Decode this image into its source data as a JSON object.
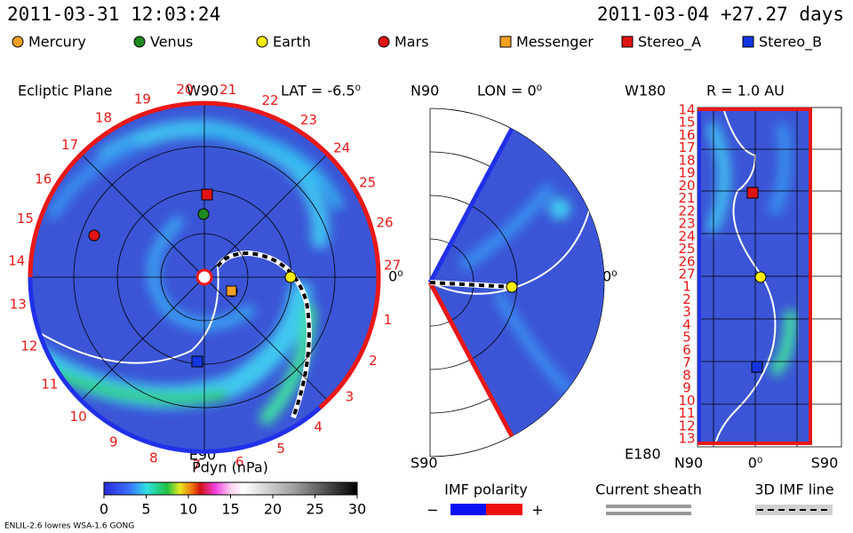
{
  "header": {
    "sim_time": "2011-03-31 12:03:24",
    "ref_time": "2011-03-04 +27.27 days"
  },
  "legend": [
    {
      "name": "Mercury",
      "shape": "circle",
      "color": "#f2a024"
    },
    {
      "name": "Venus",
      "shape": "circle",
      "color": "#1f8a1f"
    },
    {
      "name": "Earth",
      "shape": "circle",
      "color": "#ffee00"
    },
    {
      "name": "Mars",
      "shape": "circle",
      "color": "#e01414"
    },
    {
      "name": "Messenger",
      "shape": "square",
      "color": "#f2a024"
    },
    {
      "name": "Stereo_A",
      "shape": "square",
      "color": "#e01414"
    },
    {
      "name": "Stereo_B",
      "shape": "square",
      "color": "#1436e0"
    }
  ],
  "ecliptic": {
    "title": "Ecliptic Plane",
    "top_label": "W90",
    "lat_label": "LAT = -6.5⁰",
    "right_label": "0⁰",
    "bottom_label": "E90",
    "day_labels": [
      1,
      2,
      3,
      4,
      5,
      6,
      7,
      8,
      9,
      10,
      11,
      12,
      13,
      14,
      15,
      16,
      17,
      18,
      19,
      20,
      21,
      22,
      23,
      24,
      25,
      26,
      27
    ]
  },
  "meridional": {
    "top_label": "N90",
    "lon_label": "LON = 0⁰",
    "right_label": "0⁰",
    "bottom_label": "S90"
  },
  "radial": {
    "top_label": "W180",
    "r_label": "R = 1.0 AU",
    "bottom_label": "E180",
    "x_labels": [
      "N90",
      "0⁰",
      "S90"
    ],
    "day_labels": [
      14,
      15,
      16,
      17,
      18,
      19,
      20,
      21,
      22,
      23,
      24,
      25,
      26,
      27,
      1,
      2,
      3,
      4,
      5,
      6,
      7,
      8,
      9,
      10,
      11,
      12,
      13
    ]
  },
  "colorbar": {
    "title": "Pdyn (nPa)",
    "ticks": [
      0,
      5,
      10,
      15,
      20,
      25,
      30
    ]
  },
  "keys": {
    "imf_title": "IMF polarity",
    "minus": "−",
    "plus": "+",
    "sheath_title": "Current sheath",
    "imf_line_title": "3D IMF line"
  },
  "footer": {
    "model": "ENLIL-2.6 lowres WSA-1.6 GONG"
  }
}
